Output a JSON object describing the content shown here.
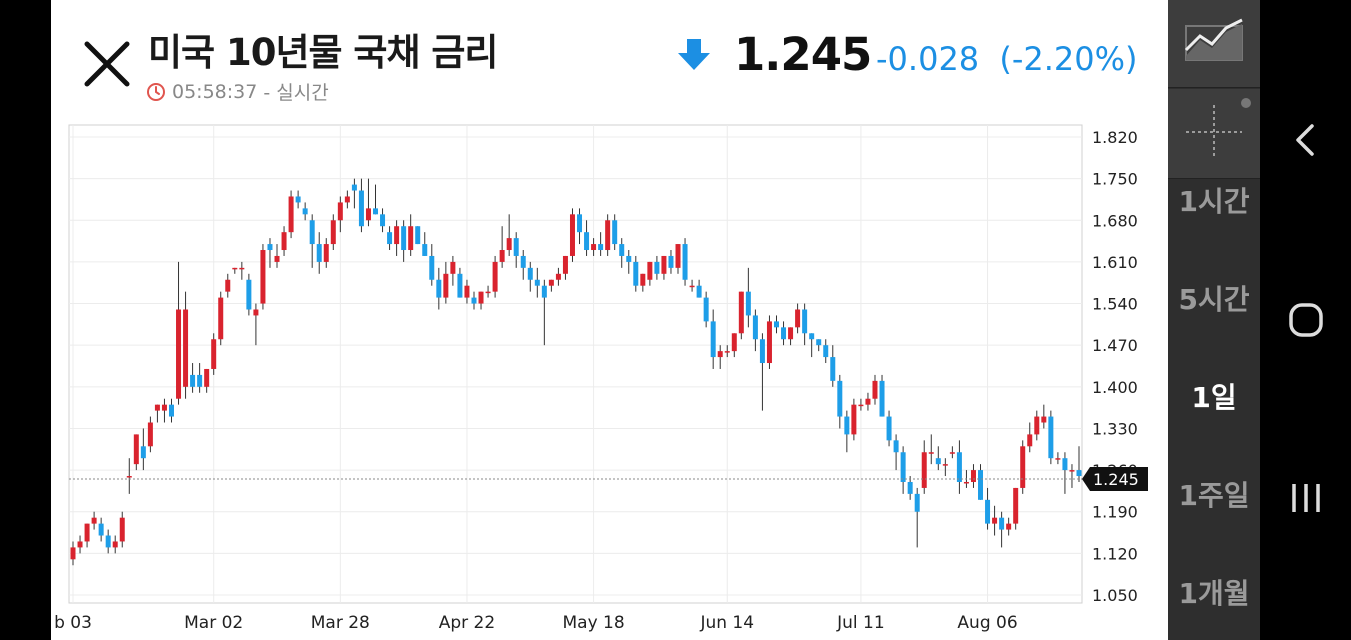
{
  "header": {
    "title": "미국 10년물 국채 금리",
    "time": "05:58:37",
    "time_suffix": "- 실시간",
    "price": "1.245",
    "change": "-0.028",
    "change_pct": "(-2.20%)"
  },
  "toolbar": {
    "periods": [
      "1시간",
      "5시간",
      "1일",
      "1주일",
      "1개월"
    ],
    "active_period": "1일"
  },
  "colors": {
    "up": "#d9232e",
    "down": "#1e9ee8",
    "change": "#1c8fe3"
  },
  "chart_data": {
    "type": "candlestick",
    "ylim": [
      1.05,
      1.82
    ],
    "y_ticks": [
      "1.820",
      "1.750",
      "1.680",
      "1.610",
      "1.540",
      "1.470",
      "1.400",
      "1.330",
      "1.260",
      "1.190",
      "1.120",
      "1.050"
    ],
    "x_ticks": [
      {
        "label": "b 03",
        "index": 0
      },
      {
        "label": "Mar 02",
        "index": 20
      },
      {
        "label": "Mar 28",
        "index": 38
      },
      {
        "label": "Apr 22",
        "index": 56
      },
      {
        "label": "May 18",
        "index": 74
      },
      {
        "label": "Jun 14",
        "index": 93
      },
      {
        "label": "Jul 11",
        "index": 112
      },
      {
        "label": "Aug 06",
        "index": 130
      }
    ],
    "last_price": 1.245,
    "candles": [
      [
        1.11,
        1.14,
        1.1,
        1.13
      ],
      [
        1.13,
        1.15,
        1.12,
        1.14
      ],
      [
        1.14,
        1.17,
        1.13,
        1.17
      ],
      [
        1.17,
        1.19,
        1.16,
        1.18
      ],
      [
        1.17,
        1.18,
        1.14,
        1.15
      ],
      [
        1.15,
        1.16,
        1.12,
        1.13
      ],
      [
        1.13,
        1.15,
        1.12,
        1.14
      ],
      [
        1.14,
        1.19,
        1.13,
        1.18
      ],
      [
        1.25,
        1.28,
        1.22,
        1.25
      ],
      [
        1.27,
        1.32,
        1.26,
        1.32
      ],
      [
        1.3,
        1.33,
        1.26,
        1.28
      ],
      [
        1.3,
        1.35,
        1.29,
        1.34
      ],
      [
        1.36,
        1.37,
        1.34,
        1.37
      ],
      [
        1.36,
        1.38,
        1.34,
        1.37
      ],
      [
        1.37,
        1.38,
        1.34,
        1.35
      ],
      [
        1.38,
        1.61,
        1.37,
        1.53
      ],
      [
        1.4,
        1.56,
        1.38,
        1.53
      ],
      [
        1.42,
        1.44,
        1.39,
        1.4
      ],
      [
        1.42,
        1.44,
        1.39,
        1.4
      ],
      [
        1.4,
        1.43,
        1.39,
        1.43
      ],
      [
        1.43,
        1.49,
        1.42,
        1.48
      ],
      [
        1.48,
        1.56,
        1.47,
        1.55
      ],
      [
        1.56,
        1.59,
        1.55,
        1.58
      ],
      [
        1.6,
        1.6,
        1.59,
        1.6
      ],
      [
        1.6,
        1.61,
        1.58,
        1.6
      ],
      [
        1.58,
        1.59,
        1.52,
        1.53
      ],
      [
        1.52,
        1.54,
        1.47,
        1.53
      ],
      [
        1.54,
        1.64,
        1.53,
        1.63
      ],
      [
        1.64,
        1.65,
        1.6,
        1.63
      ],
      [
        1.61,
        1.64,
        1.6,
        1.62
      ],
      [
        1.63,
        1.67,
        1.62,
        1.66
      ],
      [
        1.66,
        1.73,
        1.65,
        1.72
      ],
      [
        1.72,
        1.73,
        1.7,
        1.71
      ],
      [
        1.7,
        1.71,
        1.68,
        1.69
      ],
      [
        1.68,
        1.69,
        1.6,
        1.64
      ],
      [
        1.64,
        1.66,
        1.59,
        1.61
      ],
      [
        1.61,
        1.65,
        1.6,
        1.64
      ],
      [
        1.64,
        1.69,
        1.63,
        1.68
      ],
      [
        1.68,
        1.72,
        1.66,
        1.71
      ],
      [
        1.71,
        1.73,
        1.7,
        1.72
      ],
      [
        1.74,
        1.75,
        1.7,
        1.73
      ],
      [
        1.73,
        1.75,
        1.66,
        1.67
      ],
      [
        1.68,
        1.75,
        1.67,
        1.7
      ],
      [
        1.7,
        1.74,
        1.69,
        1.69
      ],
      [
        1.69,
        1.7,
        1.66,
        1.67
      ],
      [
        1.66,
        1.67,
        1.63,
        1.64
      ],
      [
        1.64,
        1.68,
        1.62,
        1.67
      ],
      [
        1.67,
        1.68,
        1.61,
        1.63
      ],
      [
        1.63,
        1.69,
        1.62,
        1.67
      ],
      [
        1.67,
        1.67,
        1.64,
        1.64
      ],
      [
        1.64,
        1.66,
        1.62,
        1.62
      ],
      [
        1.62,
        1.64,
        1.57,
        1.58
      ],
      [
        1.58,
        1.6,
        1.53,
        1.55
      ],
      [
        1.55,
        1.61,
        1.54,
        1.59
      ],
      [
        1.59,
        1.62,
        1.57,
        1.61
      ],
      [
        1.59,
        1.6,
        1.55,
        1.55
      ],
      [
        1.55,
        1.58,
        1.54,
        1.57
      ],
      [
        1.55,
        1.56,
        1.53,
        1.54
      ],
      [
        1.54,
        1.56,
        1.53,
        1.56
      ],
      [
        1.56,
        1.57,
        1.55,
        1.56
      ],
      [
        1.56,
        1.62,
        1.55,
        1.61
      ],
      [
        1.61,
        1.67,
        1.6,
        1.63
      ],
      [
        1.63,
        1.69,
        1.62,
        1.65
      ],
      [
        1.65,
        1.66,
        1.6,
        1.62
      ],
      [
        1.62,
        1.63,
        1.58,
        1.6
      ],
      [
        1.6,
        1.61,
        1.56,
        1.58
      ],
      [
        1.58,
        1.6,
        1.55,
        1.57
      ],
      [
        1.57,
        1.58,
        1.47,
        1.55
      ],
      [
        1.57,
        1.58,
        1.56,
        1.58
      ],
      [
        1.58,
        1.6,
        1.57,
        1.59
      ],
      [
        1.59,
        1.62,
        1.58,
        1.62
      ],
      [
        1.62,
        1.7,
        1.61,
        1.69
      ],
      [
        1.69,
        1.7,
        1.64,
        1.66
      ],
      [
        1.66,
        1.68,
        1.62,
        1.63
      ],
      [
        1.63,
        1.65,
        1.62,
        1.64
      ],
      [
        1.64,
        1.66,
        1.62,
        1.63
      ],
      [
        1.63,
        1.69,
        1.62,
        1.68
      ],
      [
        1.68,
        1.69,
        1.63,
        1.64
      ],
      [
        1.64,
        1.65,
        1.6,
        1.62
      ],
      [
        1.62,
        1.63,
        1.59,
        1.61
      ],
      [
        1.61,
        1.62,
        1.56,
        1.57
      ],
      [
        1.57,
        1.59,
        1.56,
        1.59
      ],
      [
        1.58,
        1.61,
        1.57,
        1.61
      ],
      [
        1.61,
        1.62,
        1.58,
        1.59
      ],
      [
        1.59,
        1.62,
        1.58,
        1.62
      ],
      [
        1.62,
        1.63,
        1.59,
        1.6
      ],
      [
        1.6,
        1.64,
        1.59,
        1.64
      ],
      [
        1.64,
        1.65,
        1.57,
        1.58
      ],
      [
        1.57,
        1.58,
        1.56,
        1.57
      ],
      [
        1.57,
        1.58,
        1.55,
        1.55
      ],
      [
        1.55,
        1.56,
        1.5,
        1.51
      ],
      [
        1.51,
        1.53,
        1.43,
        1.45
      ],
      [
        1.45,
        1.47,
        1.43,
        1.46
      ],
      [
        1.46,
        1.47,
        1.45,
        1.46
      ],
      [
        1.46,
        1.49,
        1.45,
        1.49
      ],
      [
        1.49,
        1.56,
        1.48,
        1.56
      ],
      [
        1.56,
        1.6,
        1.5,
        1.52
      ],
      [
        1.52,
        1.53,
        1.46,
        1.48
      ],
      [
        1.48,
        1.49,
        1.36,
        1.44
      ],
      [
        1.44,
        1.52,
        1.43,
        1.51
      ],
      [
        1.51,
        1.52,
        1.49,
        1.5
      ],
      [
        1.5,
        1.51,
        1.47,
        1.48
      ],
      [
        1.48,
        1.5,
        1.47,
        1.5
      ],
      [
        1.5,
        1.54,
        1.49,
        1.53
      ],
      [
        1.53,
        1.54,
        1.47,
        1.49
      ],
      [
        1.49,
        1.49,
        1.45,
        1.48
      ],
      [
        1.48,
        1.48,
        1.46,
        1.47
      ],
      [
        1.47,
        1.48,
        1.44,
        1.45
      ],
      [
        1.45,
        1.47,
        1.4,
        1.41
      ],
      [
        1.41,
        1.42,
        1.33,
        1.35
      ],
      [
        1.35,
        1.36,
        1.29,
        1.32
      ],
      [
        1.32,
        1.38,
        1.31,
        1.37
      ],
      [
        1.37,
        1.38,
        1.36,
        1.37
      ],
      [
        1.37,
        1.39,
        1.36,
        1.38
      ],
      [
        1.38,
        1.42,
        1.37,
        1.41
      ],
      [
        1.41,
        1.42,
        1.35,
        1.35
      ],
      [
        1.35,
        1.36,
        1.3,
        1.31
      ],
      [
        1.31,
        1.32,
        1.26,
        1.29
      ],
      [
        1.29,
        1.3,
        1.22,
        1.24
      ],
      [
        1.24,
        1.25,
        1.21,
        1.22
      ],
      [
        1.22,
        1.23,
        1.13,
        1.19
      ],
      [
        1.23,
        1.31,
        1.22,
        1.29
      ],
      [
        1.29,
        1.32,
        1.27,
        1.29
      ],
      [
        1.28,
        1.3,
        1.26,
        1.27
      ],
      [
        1.27,
        1.28,
        1.25,
        1.27
      ],
      [
        1.29,
        1.3,
        1.28,
        1.29
      ],
      [
        1.29,
        1.31,
        1.22,
        1.24
      ],
      [
        1.24,
        1.26,
        1.23,
        1.24
      ],
      [
        1.24,
        1.27,
        1.23,
        1.26
      ],
      [
        1.26,
        1.27,
        1.21,
        1.21
      ],
      [
        1.21,
        1.23,
        1.16,
        1.17
      ],
      [
        1.17,
        1.2,
        1.15,
        1.18
      ],
      [
        1.18,
        1.19,
        1.13,
        1.16
      ],
      [
        1.16,
        1.18,
        1.15,
        1.17
      ],
      [
        1.17,
        1.23,
        1.16,
        1.23
      ],
      [
        1.23,
        1.31,
        1.22,
        1.3
      ],
      [
        1.3,
        1.34,
        1.29,
        1.32
      ],
      [
        1.32,
        1.36,
        1.31,
        1.35
      ],
      [
        1.34,
        1.37,
        1.33,
        1.35
      ],
      [
        1.35,
        1.36,
        1.27,
        1.28
      ],
      [
        1.28,
        1.29,
        1.27,
        1.28
      ],
      [
        1.28,
        1.29,
        1.22,
        1.26
      ],
      [
        1.26,
        1.27,
        1.23,
        1.26
      ],
      [
        1.26,
        1.3,
        1.24,
        1.25
      ]
    ]
  }
}
